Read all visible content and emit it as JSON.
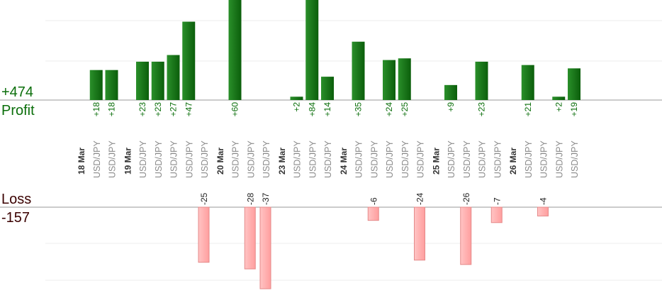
{
  "summary": {
    "profit_total": "+474",
    "profit_label": "Profit",
    "loss_label": "Loss",
    "loss_total": "-157"
  },
  "colors": {
    "profit_bar": "#0b6e0b",
    "profit_bar_light": "#2a8f2a",
    "loss_bar": "#ffb3b3",
    "loss_bar_border": "#e58a8a",
    "profit_text": "#0a6e0a",
    "loss_text": "#222222",
    "date_text": "#333333",
    "pair_text": "#8a8a8a",
    "grid": "#ececec",
    "axis": "#999999"
  },
  "chart_data": {
    "type": "bar",
    "profit_axis_max": 60,
    "loss_axis_max": 37,
    "columns": [
      {
        "label": "18 Mar",
        "kind": "date"
      },
      {
        "label": "USD/JPY",
        "kind": "trade",
        "value": 18
      },
      {
        "label": "USD/JPY",
        "kind": "trade",
        "value": 18
      },
      {
        "label": "19 Mar",
        "kind": "date"
      },
      {
        "label": "USD/JPY",
        "kind": "trade",
        "value": 23
      },
      {
        "label": "USD/JPY",
        "kind": "trade",
        "value": 23
      },
      {
        "label": "USD/JPY",
        "kind": "trade",
        "value": 27
      },
      {
        "label": "USD/JPY",
        "kind": "trade",
        "value": 47
      },
      {
        "label": "USD/JPY",
        "kind": "trade",
        "value": -25
      },
      {
        "label": "20 Mar",
        "kind": "date"
      },
      {
        "label": "USD/JPY",
        "kind": "trade",
        "value": 60
      },
      {
        "label": "USD/JPY",
        "kind": "trade",
        "value": -28
      },
      {
        "label": "USD/JPY",
        "kind": "trade",
        "value": -37
      },
      {
        "label": "23 Mar",
        "kind": "date"
      },
      {
        "label": "USD/JPY",
        "kind": "trade",
        "value": 2
      },
      {
        "label": "USD/JPY",
        "kind": "trade",
        "value": 84
      },
      {
        "label": "USD/JPY",
        "kind": "trade",
        "value": 14
      },
      {
        "label": "24 Mar",
        "kind": "date"
      },
      {
        "label": "USD/JPY",
        "kind": "trade",
        "value": 35
      },
      {
        "label": "USD/JPY",
        "kind": "trade",
        "value": -6
      },
      {
        "label": "USD/JPY",
        "kind": "trade",
        "value": 24
      },
      {
        "label": "USD/JPY",
        "kind": "trade",
        "value": 25
      },
      {
        "label": "USD/JPY",
        "kind": "trade",
        "value": -24
      },
      {
        "label": "25 Mar",
        "kind": "date"
      },
      {
        "label": "USD/JPY",
        "kind": "trade",
        "value": 9
      },
      {
        "label": "USD/JPY",
        "kind": "trade",
        "value": -26
      },
      {
        "label": "USD/JPY",
        "kind": "trade",
        "value": 23
      },
      {
        "label": "USD/JPY",
        "kind": "trade",
        "value": -7
      },
      {
        "label": "26 Mar",
        "kind": "date"
      },
      {
        "label": "USD/JPY",
        "kind": "trade",
        "value": 21
      },
      {
        "label": "USD/JPY",
        "kind": "trade",
        "value": -4
      },
      {
        "label": "USD/JPY",
        "kind": "trade",
        "value": 2
      },
      {
        "label": "USD/JPY",
        "kind": "trade",
        "value": 19
      }
    ]
  }
}
